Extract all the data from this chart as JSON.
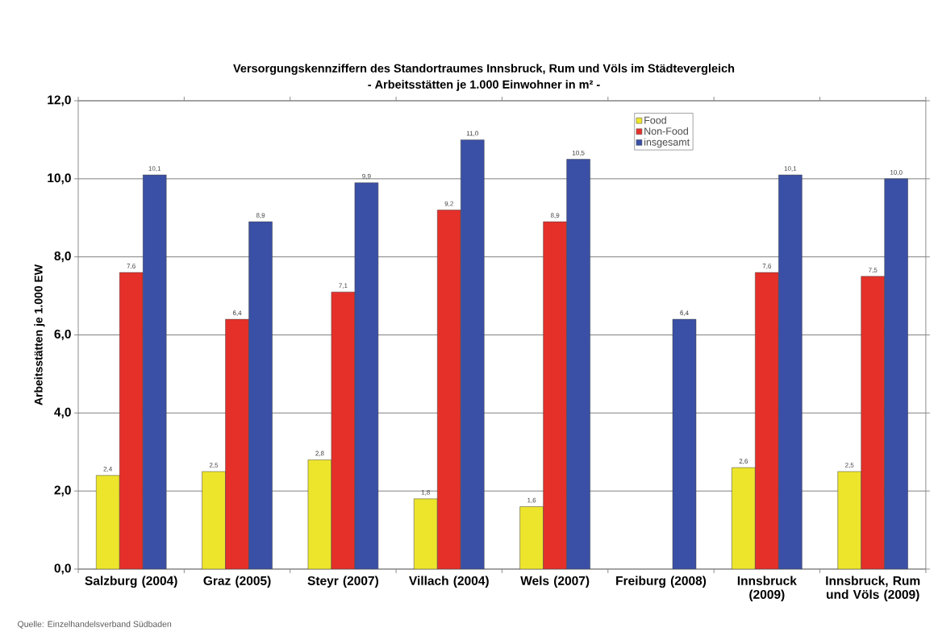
{
  "chart_data": {
    "type": "bar",
    "title": "Versorgungskennziffern des Standortraumes Innsbruck, Rum und Völs im Städtevergleich",
    "subtitle": "- Arbeitsstätten je 1.000 Einwohner in m² -",
    "ylabel": "Arbeitsstätten je 1.000 EW",
    "categories": [
      "Salzburg (2004)",
      "Graz (2005)",
      "Steyr (2007)",
      "Villach (2004)",
      "Wels (2007)",
      "Freiburg (2008)",
      "Innsbruck (2009)",
      "Innsbruck, Rum und Völs (2009)"
    ],
    "series": [
      {
        "name": "Food",
        "color": "#ede52c",
        "values": [
          2.4,
          2.5,
          2.8,
          1.8,
          1.6,
          null,
          2.6,
          2.5
        ],
        "value_labels": [
          "2,4",
          "2,5",
          "2,8",
          "1,8",
          "1,6",
          null,
          "2,6",
          "2,5"
        ]
      },
      {
        "name": "Non-Food",
        "color": "#e5302a",
        "values": [
          7.6,
          6.4,
          7.1,
          9.2,
          8.9,
          null,
          7.6,
          7.5
        ],
        "value_labels": [
          "7,6",
          "6,4",
          "7,1",
          "9,2",
          "8,9",
          null,
          "7,6",
          "7,5"
        ]
      },
      {
        "name": "insgesamt",
        "color": "#3a50a6",
        "values": [
          10.1,
          8.9,
          9.9,
          11.0,
          10.5,
          6.4,
          10.1,
          10.0
        ],
        "value_labels": [
          "10,1",
          "8,9",
          "9,9",
          "11,0",
          "10,5",
          "6,4",
          "10,1",
          "10,0"
        ]
      }
    ],
    "ylim": [
      0,
      12
    ],
    "yticks": [
      {
        "value": 0,
        "label": "0,0"
      },
      {
        "value": 2,
        "label": "2,0"
      },
      {
        "value": 4,
        "label": "4,0"
      },
      {
        "value": 6,
        "label": "6,0"
      },
      {
        "value": 8,
        "label": "8,0"
      },
      {
        "value": 10,
        "label": "10,0"
      },
      {
        "value": 12,
        "label": "12,0"
      }
    ],
    "grid": "y",
    "legend": "top right",
    "annotations": [
      "Quelle: Einzelhandelsverband Südbaden"
    ]
  }
}
